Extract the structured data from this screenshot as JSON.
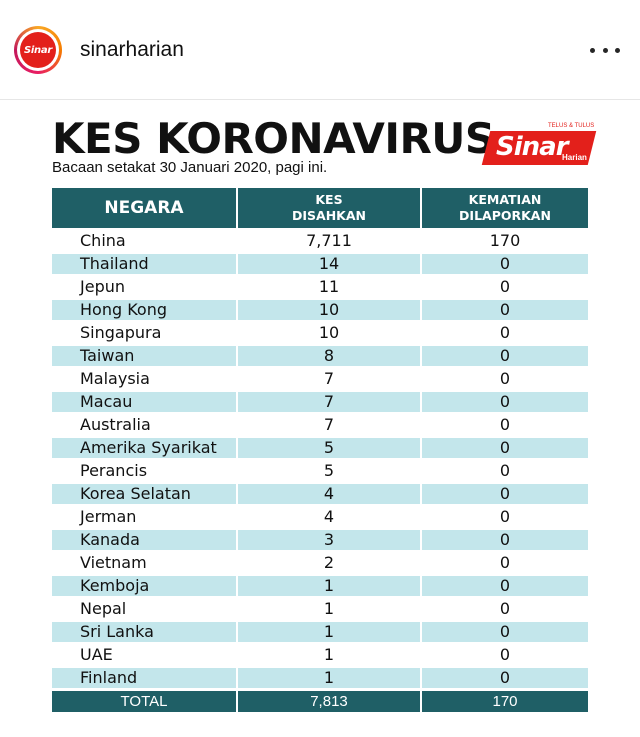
{
  "post": {
    "username": "sinarharian",
    "avatar_label": "Sinar"
  },
  "infographic": {
    "title": "KES KORONAVIRUS",
    "subtitle": "Bacaan setakat 30 Januari 2020, pagi ini.",
    "logo": {
      "name": "Sinar",
      "sub": "Harian",
      "tagline": "TELUS & TULUS"
    },
    "colors": {
      "header": "#1f5f66",
      "stripe": "#c3e6eb",
      "brand": "#e3201b"
    },
    "table": {
      "headers": [
        {
          "line1": "NEGARA",
          "line2": ""
        },
        {
          "line1": "KES",
          "line2": "DISAHKAN"
        },
        {
          "line1": "KEMATIAN",
          "line2": "DILAPORKAN"
        }
      ],
      "rows": [
        {
          "country": "China",
          "cases": "7,711",
          "deaths": "170"
        },
        {
          "country": "Thailand",
          "cases": "14",
          "deaths": "0"
        },
        {
          "country": "Jepun",
          "cases": "11",
          "deaths": "0"
        },
        {
          "country": "Hong Kong",
          "cases": "10",
          "deaths": "0"
        },
        {
          "country": "Singapura",
          "cases": "10",
          "deaths": "0"
        },
        {
          "country": "Taiwan",
          "cases": "8",
          "deaths": "0"
        },
        {
          "country": "Malaysia",
          "cases": "7",
          "deaths": "0"
        },
        {
          "country": "Macau",
          "cases": "7",
          "deaths": "0"
        },
        {
          "country": "Australia",
          "cases": "7",
          "deaths": "0"
        },
        {
          "country": "Amerika Syarikat",
          "cases": "5",
          "deaths": "0"
        },
        {
          "country": "Perancis",
          "cases": "5",
          "deaths": "0"
        },
        {
          "country": "Korea Selatan",
          "cases": "4",
          "deaths": "0"
        },
        {
          "country": "Jerman",
          "cases": "4",
          "deaths": "0"
        },
        {
          "country": "Kanada",
          "cases": "3",
          "deaths": "0"
        },
        {
          "country": "Vietnam",
          "cases": "2",
          "deaths": "0"
        },
        {
          "country": "Kemboja",
          "cases": "1",
          "deaths": "0"
        },
        {
          "country": "Nepal",
          "cases": "1",
          "deaths": "0"
        },
        {
          "country": "Sri Lanka",
          "cases": "1",
          "deaths": "0"
        },
        {
          "country": "UAE",
          "cases": "1",
          "deaths": "0"
        },
        {
          "country": "Finland",
          "cases": "1",
          "deaths": "0"
        }
      ],
      "total": {
        "label": "TOTAL",
        "cases": "7,813",
        "deaths": "170"
      }
    }
  }
}
